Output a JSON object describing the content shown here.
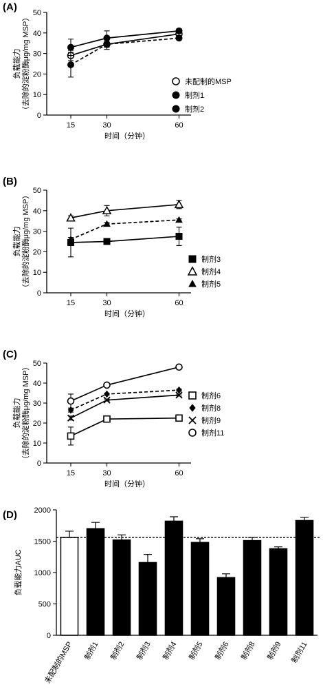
{
  "chart_data": [
    {
      "panel": "(A)",
      "type": "line",
      "xlabel": "时间（分钟）",
      "ylabel_line1": "负载能力",
      "ylabel_line2": "（去除的淀粉酶μg/mg MSP）",
      "x": [
        15,
        30,
        60
      ],
      "xticks": [
        15,
        30,
        60
      ],
      "xlim": [
        5,
        65
      ],
      "ylim": [
        0,
        50
      ],
      "yticks": [
        0,
        10,
        20,
        30,
        40,
        50
      ],
      "legend_position": "right",
      "series": [
        {
          "name": "未配制的MSP",
          "marker": "circle-open",
          "dash": "solid",
          "values": [
            29,
            34.5,
            39.5
          ],
          "errors": [
            2.5,
            1.5,
            1.0
          ]
        },
        {
          "name": "制剂1",
          "marker": "circle-filled",
          "dash": "solid",
          "values": [
            33,
            37.5,
            41
          ],
          "errors": [
            4,
            3.5,
            1.0
          ]
        },
        {
          "name": "制剂2",
          "marker": "circle-filled",
          "dash": "dashed",
          "values": [
            24.5,
            34.5,
            37.5
          ],
          "errors": [
            6,
            2.5,
            1.0
          ]
        }
      ]
    },
    {
      "panel": "(B)",
      "type": "line",
      "xlabel": "时间（分钟）",
      "ylabel_line1": "负载能力",
      "ylabel_line2": "（去除的淀粉酶μg/mg MSP）",
      "x": [
        15,
        30,
        60
      ],
      "xticks": [
        15,
        30,
        60
      ],
      "xlim": [
        5,
        65
      ],
      "ylim": [
        0,
        50
      ],
      "yticks": [
        0,
        10,
        20,
        30,
        40,
        50
      ],
      "legend_position": "right",
      "series": [
        {
          "name": "制剂3",
          "marker": "square-filled",
          "dash": "solid",
          "values": [
            24.5,
            25,
            27.5
          ],
          "errors": [
            7,
            0.5,
            4.5
          ]
        },
        {
          "name": "制剂4",
          "marker": "triangle-open",
          "dash": "solid",
          "values": [
            36.5,
            40,
            43
          ],
          "errors": [
            1.0,
            2.5,
            2.0
          ]
        },
        {
          "name": "制剂5",
          "marker": "triangle-filled",
          "dash": "dashed",
          "values": [
            26,
            33.5,
            35.5
          ],
          "errors": [
            1.0,
            0.8,
            0.5
          ]
        }
      ]
    },
    {
      "panel": "(C)",
      "type": "line",
      "xlabel": "时间（分钟）",
      "ylabel_line1": "负载能力",
      "ylabel_line2": "（去除的淀粉酶μg/mg MSP）",
      "x": [
        15,
        30,
        60
      ],
      "xticks": [
        15,
        30,
        60
      ],
      "xlim": [
        5,
        65
      ],
      "ylim": [
        0,
        50
      ],
      "yticks": [
        0,
        10,
        20,
        30,
        40,
        50
      ],
      "legend_position": "right",
      "series": [
        {
          "name": "制剂6",
          "marker": "square-open",
          "dash": "solid",
          "values": [
            13.5,
            22,
            22.5
          ],
          "errors": [
            4.5,
            1.0,
            0.5
          ]
        },
        {
          "name": "制剂8",
          "marker": "diamond-filled",
          "dash": "dashed",
          "values": [
            26.5,
            34.5,
            36.5
          ],
          "errors": [
            1.0,
            0.5,
            0.5
          ]
        },
        {
          "name": "制剂9",
          "marker": "x",
          "dash": "solid",
          "values": [
            22.5,
            31.5,
            34
          ],
          "errors": [
            1.0,
            0.5,
            0.5
          ]
        },
        {
          "name": "制剂11",
          "marker": "circle-open",
          "dash": "solid",
          "values": [
            31,
            39,
            48
          ],
          "errors": [
            3.5,
            0.5,
            0.5
          ]
        }
      ]
    },
    {
      "panel": "(D)",
      "type": "bar",
      "ylabel": "负载能力AUC",
      "ylim": [
        0,
        2000
      ],
      "yticks": [
        0,
        500,
        1000,
        1500,
        2000
      ],
      "reference_line": 1560,
      "categories": [
        "未配制的MSP",
        "制剂1",
        "制剂2",
        "制剂3",
        "制剂4",
        "制剂5",
        "制剂6",
        "制剂8",
        "制剂9",
        "制剂11"
      ],
      "values": [
        1560,
        1700,
        1520,
        1160,
        1820,
        1480,
        920,
        1510,
        1380,
        1830
      ],
      "errors": [
        100,
        100,
        80,
        130,
        70,
        60,
        60,
        50,
        30,
        50
      ],
      "fills": [
        "open",
        "filled",
        "filled",
        "filled",
        "filled",
        "filled",
        "filled",
        "filled",
        "filled",
        "filled"
      ]
    }
  ]
}
